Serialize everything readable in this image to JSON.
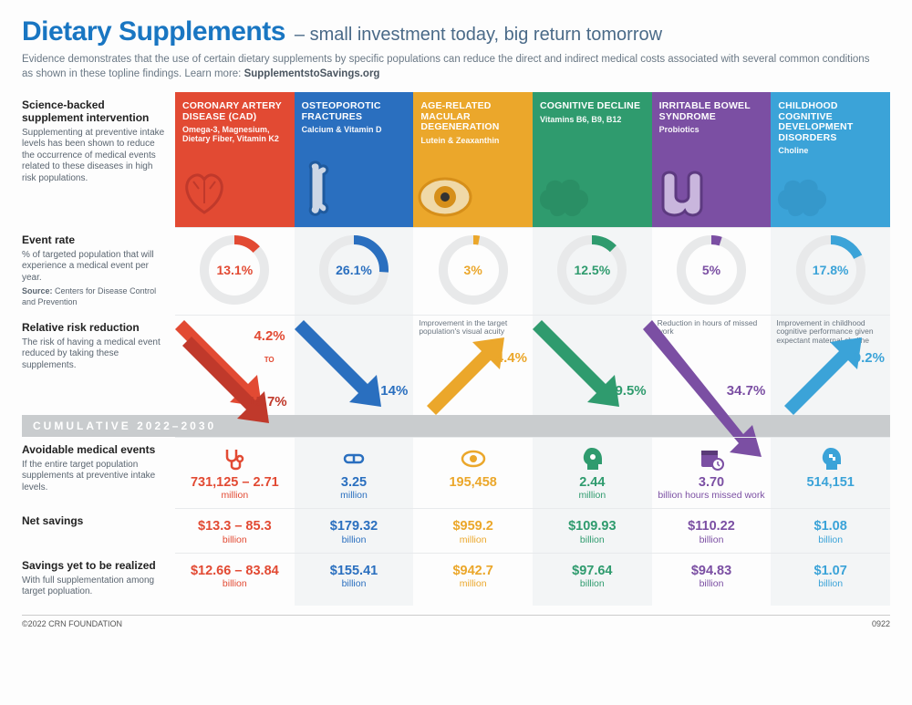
{
  "header": {
    "title": "Dietary Supplements",
    "subtitle_prefix": "–",
    "subtitle": "small investment today, big return tomorrow",
    "intro": "Evidence demonstrates that the use of certain dietary supplements by specific populations can reduce the direct and indirect medical costs associated with several common conditions as shown in these topline findings. Learn more:",
    "learn_more_site": "SupplementstoSavings.org",
    "title_color": "#1976c2"
  },
  "row_labels": {
    "intervention_h": "Science-backed supplement intervention",
    "intervention_d": "Supplementing at preventive intake levels has been shown to reduce the occurrence of medical events related to these diseases in high risk populations.",
    "event_h": "Event rate",
    "event_d": "% of targeted population that will experience a medical event per year.",
    "event_src_label": "Source:",
    "event_src": "Centers for Disease Control and Prevention",
    "rr_h": "Relative risk reduction",
    "rr_d": "The risk of having a medical event reduced by taking these supplements.",
    "cum_band": "CUMULATIVE 2022–2030",
    "avoid_h": "Avoidable medical events",
    "avoid_d": "If the entire target population supplements at preventive intake levels.",
    "net_h": "Net savings",
    "savings_h": "Savings yet to be realized",
    "savings_d": "With full supplementation among target popluation."
  },
  "columns": [
    {
      "id": "cad",
      "condition": "CORONARY ARTERY DISEASE (CAD)",
      "supplement": "Omega-3, Magnesium, Dietary Fiber, Vitamin K2",
      "color": "#e24a33",
      "accent": "#c0392b",
      "icon": "heart",
      "event_rate_pct": 13.1,
      "event_rate_label": "13.1%",
      "rr_direction": "down",
      "rr_primary": "15.7%",
      "rr_secondary": "4.2%",
      "rr_joiner": "TO",
      "rr_note": "",
      "avoid_value": "731,125 – 2.71",
      "avoid_unit": "million",
      "avoid_icon": "stethoscope",
      "net_value": "$13.3 – 85.3",
      "net_unit": "billion",
      "realize_value": "$12.66 – 83.84",
      "realize_unit": "billion"
    },
    {
      "id": "osteo",
      "condition": "OSTEOPOROTIC FRACTURES",
      "supplement": "Calcium & Vitamin D",
      "color": "#2a6fbf",
      "accent": "#1f5a9e",
      "icon": "bone",
      "event_rate_pct": 26.1,
      "event_rate_label": "26.1%",
      "rr_direction": "down",
      "rr_primary": "14%",
      "rr_note": "",
      "avoid_value": "3.25",
      "avoid_unit": "million",
      "avoid_icon": "pill",
      "net_value": "$179.32",
      "net_unit": "billion",
      "realize_value": "$155.41",
      "realize_unit": "billion"
    },
    {
      "id": "amd",
      "condition": "AGE-RELATED MACULAR DEGENERATION",
      "supplement": "Lutein & Zeaxanthin",
      "color": "#eba72b",
      "accent": "#d68f1a",
      "icon": "eye",
      "event_rate_pct": 3,
      "event_rate_label": "3%",
      "rr_direction": "up",
      "rr_primary": "4.4%",
      "rr_note": "Improvement in the target population's visual acuity",
      "avoid_value": "195,458",
      "avoid_unit": "",
      "avoid_icon": "eye-small",
      "net_value": "$959.2",
      "net_unit": "million",
      "realize_value": "$942.7",
      "realize_unit": "million"
    },
    {
      "id": "cog",
      "condition": "COGNITIVE DECLINE",
      "supplement": "Vitamins B6, B9, B12",
      "color": "#2f9b6e",
      "accent": "#237a56",
      "icon": "brain",
      "event_rate_pct": 12.5,
      "event_rate_label": "12.5%",
      "rr_direction": "down",
      "rr_primary": "9.5%",
      "rr_note": "",
      "avoid_value": "2.44",
      "avoid_unit": "million",
      "avoid_icon": "head-gear",
      "net_value": "$109.93",
      "net_unit": "billion",
      "realize_value": "$97.64",
      "realize_unit": "billion"
    },
    {
      "id": "ibs",
      "condition": "IRRITABLE BOWEL SYNDROME",
      "supplement": "Probiotics",
      "color": "#7b4fa3",
      "accent": "#5d3a80",
      "icon": "intestine",
      "event_rate_pct": 5,
      "event_rate_label": "5%",
      "rr_direction": "down-long",
      "rr_primary": "34.7%",
      "rr_note": "Reduction in hours of missed work",
      "avoid_value": "3.70",
      "avoid_unit": "billion hours missed work",
      "avoid_icon": "calendar",
      "net_value": "$110.22",
      "net_unit": "billion",
      "realize_value": "$94.83",
      "realize_unit": "billion"
    },
    {
      "id": "child",
      "condition": "CHILDHOOD COGNITIVE DEVELOPMENT DISORDERS",
      "supplement": "Choline",
      "color": "#3ba3d8",
      "accent": "#2a85b5",
      "icon": "brain",
      "event_rate_pct": 17.8,
      "event_rate_label": "17.8%",
      "rr_direction": "up",
      "rr_primary": "9.2%",
      "rr_note": "Improvement in childhood cognitive performance given expectant maternal choline",
      "avoid_value": "514,151",
      "avoid_unit": "",
      "avoid_icon": "head-puzzle",
      "net_value": "$1.08",
      "net_unit": "billion",
      "realize_value": "$1.07",
      "realize_unit": "billion"
    }
  ],
  "footer": {
    "copyright": "©2022 CRN FOUNDATION",
    "code": "0922"
  },
  "style": {
    "donut_track": "#e8e9ea",
    "donut_size": 76,
    "donut_thickness": 10
  }
}
